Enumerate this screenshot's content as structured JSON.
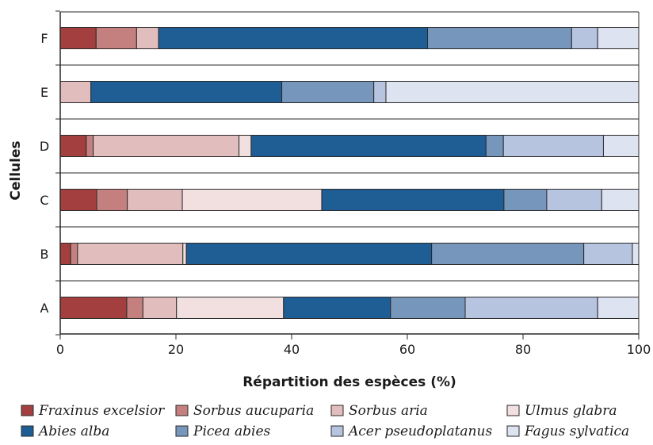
{
  "chart_data": {
    "type": "bar",
    "orientation": "horizontal",
    "stacked": true,
    "categories": [
      "A",
      "B",
      "C",
      "D",
      "E",
      "F"
    ],
    "xlabel": "Répartition des espèces (%)",
    "ylabel": "Cellules",
    "xlim": [
      0,
      100
    ],
    "xticks": [
      0,
      20,
      40,
      60,
      80,
      100
    ],
    "grid": false,
    "legend_position": "bottom",
    "series": [
      {
        "name": "Fraxinus excelsior",
        "color": "#a3403f",
        "values": [
          11.5,
          1.8,
          6.3,
          4.5,
          0,
          6.2
        ]
      },
      {
        "name": "Sorbus aucuparia",
        "color": "#c4807f",
        "values": [
          2.8,
          1.2,
          5.3,
          1.2,
          0,
          7.0
        ]
      },
      {
        "name": "Sorbus aria",
        "color": "#e2bdbd",
        "values": [
          5.8,
          18.2,
          9.5,
          25.2,
          5.3,
          3.8
        ]
      },
      {
        "name": "Ulmus glabra",
        "color": "#f2dfdf",
        "values": [
          18.5,
          0.6,
          24.1,
          2.1,
          0,
          0
        ]
      },
      {
        "name": "Abies alba",
        "color": "#1e5e95",
        "values": [
          18.5,
          42.4,
          31.5,
          40.6,
          33.0,
          46.5
        ]
      },
      {
        "name": "Picea abies",
        "color": "#7796bc",
        "values": [
          12.9,
          26.3,
          7.4,
          3.0,
          15.9,
          24.9
        ]
      },
      {
        "name": "Acer pseudoplatanus",
        "color": "#b7c4e0",
        "values": [
          22.9,
          8.4,
          9.5,
          17.3,
          2.1,
          4.5
        ]
      },
      {
        "name": "Fagus sylvatica",
        "color": "#dde3f1",
        "values": [
          7.1,
          1.1,
          6.4,
          6.1,
          43.7,
          7.1
        ]
      }
    ]
  }
}
